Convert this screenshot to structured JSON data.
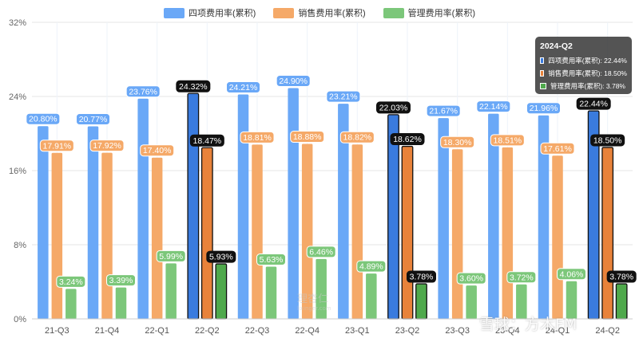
{
  "legend": {
    "items": [
      {
        "label": "四项费用率(累积)",
        "color": "#6aa8f7"
      },
      {
        "label": "销售费用率(累积)",
        "color": "#f5a968"
      },
      {
        "label": "管理费用率(累积)",
        "color": "#7cc77a"
      }
    ]
  },
  "tooltip": {
    "title": "2024-Q2",
    "rows": [
      {
        "text": "四项费用率(累积): 22.44%",
        "color": "#3a7bde"
      },
      {
        "text": "销售费用率(累积): 18.50%",
        "color": "#e8823a"
      },
      {
        "text": "管理费用率(累积): 3.78%",
        "color": "#4fa94c"
      }
    ]
  },
  "watermarks": {
    "center": "理杏仁",
    "center_sub": "lixinger.com",
    "corner": "雪球：方木FM"
  },
  "chart_data": {
    "type": "bar",
    "categories": [
      "21-Q3",
      "21-Q4",
      "22-Q1",
      "22-Q2",
      "22-Q3",
      "22-Q4",
      "23-Q1",
      "23-Q2",
      "23-Q3",
      "23-Q4",
      "24-Q1",
      "24-Q2"
    ],
    "highlighted_categories": [
      "22-Q2",
      "23-Q2",
      "24-Q2"
    ],
    "series": [
      {
        "name": "四项费用率(累积)",
        "color": "#6aa8f7",
        "values": [
          20.8,
          20.77,
          23.76,
          24.32,
          24.21,
          24.9,
          23.21,
          22.03,
          21.67,
          22.14,
          21.96,
          22.44
        ]
      },
      {
        "name": "销售费用率(累积)",
        "color": "#f5a968",
        "values": [
          17.91,
          17.92,
          17.4,
          18.47,
          18.81,
          18.88,
          18.82,
          18.62,
          18.3,
          18.51,
          17.61,
          18.5
        ]
      },
      {
        "name": "管理费用率(累积)",
        "color": "#7cc77a",
        "values": [
          3.24,
          3.39,
          5.99,
          5.93,
          5.63,
          6.46,
          4.89,
          3.78,
          3.6,
          3.72,
          4.06,
          3.78
        ]
      }
    ],
    "yticks": [
      "0%",
      "8%",
      "16%",
      "24%",
      "32%"
    ],
    "ylim": [
      0,
      32
    ],
    "grid": true,
    "legend_position": "top"
  }
}
